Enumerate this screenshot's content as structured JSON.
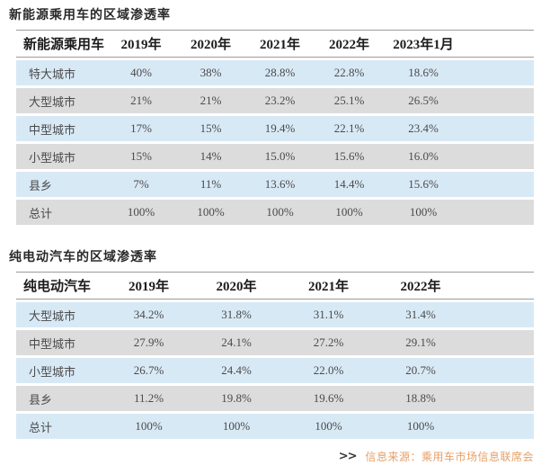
{
  "colors": {
    "row_blue": "#d8e9f6",
    "row_gray": "#dcdcdc",
    "rule_line": "#9b9b9b",
    "cell_text": "#4a4a4a",
    "source_text": "#e5a069"
  },
  "chart_data": [
    {
      "type": "table",
      "title": "新能源乘用车的区域渗透率",
      "columns": [
        "新能源乘用车",
        "2019年",
        "2020年",
        "2021年",
        "2022年",
        "2023年1月"
      ],
      "rows": [
        {
          "label": "特大城市",
          "values": [
            "40%",
            "38%",
            "28.8%",
            "22.8%",
            "18.6%"
          ]
        },
        {
          "label": "大型城市",
          "values": [
            "21%",
            "21%",
            "23.2%",
            "25.1%",
            "26.5%"
          ]
        },
        {
          "label": "中型城市",
          "values": [
            "17%",
            "15%",
            "19.4%",
            "22.1%",
            "23.4%"
          ]
        },
        {
          "label": "小型城市",
          "values": [
            "15%",
            "14%",
            "15.0%",
            "15.6%",
            "16.0%"
          ]
        },
        {
          "label": "县乡",
          "values": [
            "7%",
            "11%",
            "13.6%",
            "14.4%",
            "15.6%"
          ]
        },
        {
          "label": "总计",
          "values": [
            "100%",
            "100%",
            "100%",
            "100%",
            "100%"
          ]
        }
      ],
      "layout": {
        "stripe_pattern": "blue/gray alternating starting blue",
        "header_rules": "top and bottom 1px gray"
      }
    },
    {
      "type": "table",
      "title": "纯电动汽车的区域渗透率",
      "columns": [
        "纯电动汽车",
        "2019年",
        "2020年",
        "2021年",
        "2022年"
      ],
      "rows": [
        {
          "label": "大型城市",
          "values": [
            "34.2%",
            "31.8%",
            "31.1%",
            "31.4%"
          ]
        },
        {
          "label": "中型城市",
          "values": [
            "27.9%",
            "24.1%",
            "27.2%",
            "29.1%"
          ]
        },
        {
          "label": "小型城市",
          "values": [
            "26.7%",
            "24.4%",
            "22.0%",
            "20.7%"
          ]
        },
        {
          "label": "县乡",
          "values": [
            "11.2%",
            "19.8%",
            "19.6%",
            "18.8%"
          ]
        },
        {
          "label": "总计",
          "values": [
            "100%",
            "100%",
            "100%",
            "100%"
          ]
        }
      ],
      "layout": {
        "stripe_pattern": "blue/gray alternating starting blue",
        "header_rules": "top and bottom 1px gray"
      }
    }
  ],
  "footer": {
    "marker": ">>",
    "source": "信息来源：乘用车市场信息联席会"
  }
}
